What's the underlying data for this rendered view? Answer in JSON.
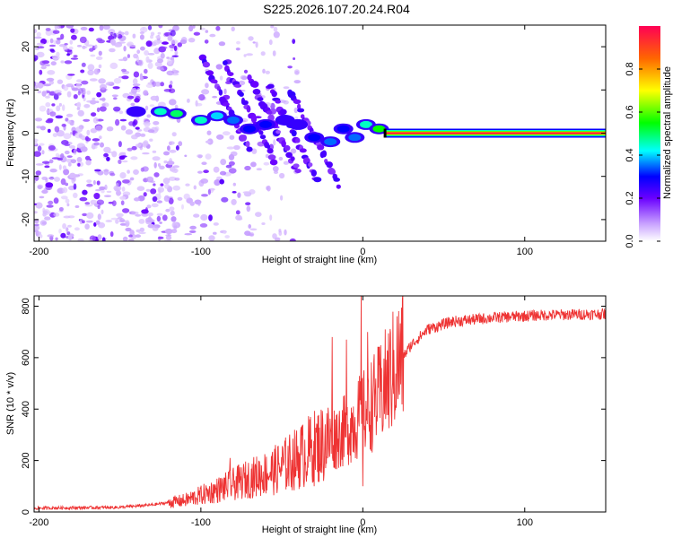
{
  "title": "S225.2026.107.20.24.R04",
  "chart_data": [
    {
      "type": "heatmap",
      "id": "spectrogram",
      "xlabel": "Height of straight line (km)",
      "ylabel": "Frequency (Hz)",
      "xlim": [
        -203,
        150
      ],
      "ylim": [
        -25,
        25
      ],
      "xticks": [
        -200,
        -100,
        0,
        100
      ],
      "yticks": [
        -20,
        -10,
        0,
        10,
        20
      ],
      "colorbar": {
        "label": "Normalized spectral amplitude",
        "range": [
          0,
          1
        ],
        "ticks": [
          0.0,
          0.2,
          0.4,
          0.6,
          0.8
        ],
        "tick_labels": [
          "0.0",
          "0.2",
          "0.4",
          "0.6",
          "0.8"
        ]
      },
      "features": {
        "noise_region_x": [
          -203,
          -100
        ],
        "tone_start_x": 14,
        "tone_frequency": 0,
        "tone_amplitude": 1.0,
        "striations": [
          {
            "x": -100,
            "y": 18
          },
          {
            "x": -85,
            "y": 16
          },
          {
            "x": -70,
            "y": 13
          },
          {
            "x": -58,
            "y": 11
          },
          {
            "x": -45,
            "y": 10
          }
        ],
        "main_ridge": [
          {
            "x": -140,
            "y": 5,
            "a": 0.25
          },
          {
            "x": -125,
            "y": 5,
            "a": 0.45
          },
          {
            "x": -115,
            "y": 4.5,
            "a": 0.5
          },
          {
            "x": -100,
            "y": 3,
            "a": 0.45
          },
          {
            "x": -90,
            "y": 4,
            "a": 0.4
          },
          {
            "x": -80,
            "y": 3,
            "a": 0.35
          },
          {
            "x": -70,
            "y": 1,
            "a": 0.3
          },
          {
            "x": -60,
            "y": 2,
            "a": 0.3
          },
          {
            "x": -48,
            "y": 3,
            "a": 0.25
          },
          {
            "x": -40,
            "y": 2,
            "a": 0.25
          },
          {
            "x": -30,
            "y": -1,
            "a": 0.3
          },
          {
            "x": -20,
            "y": -2,
            "a": 0.35
          },
          {
            "x": -12,
            "y": 1,
            "a": 0.3
          },
          {
            "x": -5,
            "y": -1,
            "a": 0.35
          },
          {
            "x": 2,
            "y": 2,
            "a": 0.45
          },
          {
            "x": 10,
            "y": 1,
            "a": 0.55
          }
        ]
      }
    },
    {
      "type": "line",
      "id": "snr",
      "xlabel": "Height of straight line (km)",
      "ylabel": "SNR (10 * v/v)",
      "xlim": [
        -203,
        150
      ],
      "ylim": [
        0,
        840
      ],
      "xticks": [
        -200,
        -100,
        0,
        100
      ],
      "yticks": [
        0,
        200,
        400,
        600,
        800
      ],
      "color": "#ee3333",
      "envelope": [
        {
          "x": -203,
          "y": 15
        },
        {
          "x": -150,
          "y": 18
        },
        {
          "x": -130,
          "y": 28
        },
        {
          "x": -110,
          "y": 45
        },
        {
          "x": -90,
          "y": 85
        },
        {
          "x": -70,
          "y": 130
        },
        {
          "x": -55,
          "y": 160
        },
        {
          "x": -40,
          "y": 210
        },
        {
          "x": -30,
          "y": 250
        },
        {
          "x": -20,
          "y": 280
        },
        {
          "x": -10,
          "y": 320
        },
        {
          "x": 0,
          "y": 380
        },
        {
          "x": 10,
          "y": 450
        },
        {
          "x": 20,
          "y": 560
        },
        {
          "x": 30,
          "y": 650
        },
        {
          "x": 40,
          "y": 710
        },
        {
          "x": 55,
          "y": 740
        },
        {
          "x": 80,
          "y": 755
        },
        {
          "x": 110,
          "y": 765
        },
        {
          "x": 150,
          "y": 770
        }
      ],
      "spikes": [
        {
          "x": -82,
          "y": 210
        },
        {
          "x": -38,
          "y": 330
        },
        {
          "x": -19,
          "y": 680
        },
        {
          "x": -10,
          "y": 670
        },
        {
          "x": -1,
          "y": 840
        },
        {
          "x": 0,
          "y": 100
        },
        {
          "x": 3,
          "y": 700
        }
      ]
    }
  ]
}
